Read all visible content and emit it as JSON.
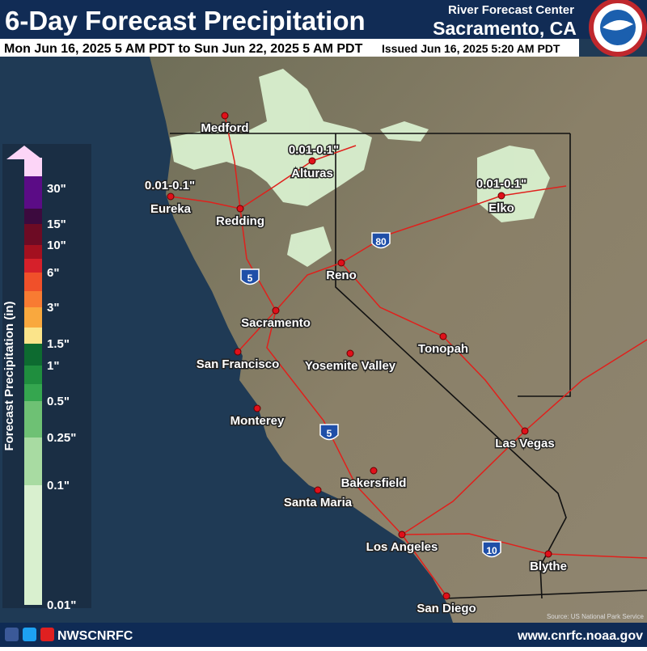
{
  "header": {
    "title": "6-Day Forecast Precipitation",
    "period": "Mon Jun 16, 2025 5 AM PDT to Sun Jun 22, 2025 5 AM PDT",
    "issued": "Issued Jun 16, 2025 5:20 AM PDT",
    "office": "River Forecast Center",
    "location": "Sacramento, CA"
  },
  "legend": {
    "title": "Forecast Precipitation (in)",
    "labels": [
      "30\"",
      "15\"",
      "10\"",
      "6\"",
      "3\"",
      "1.5\"",
      "1\"",
      "0.5\"",
      "0.25\"",
      "0.1\"",
      "0.01\""
    ]
  },
  "map": {
    "cities": [
      "Medford",
      "Eureka",
      "Redding",
      "Alturas",
      "Elko",
      "Reno",
      "Sacramento",
      "San Francisco",
      "Yosemite Valley",
      "Tonopah",
      "Monterey",
      "Las Vegas",
      "Bakersfield",
      "Santa Maria",
      "Los Angeles",
      "Blythe",
      "San Diego"
    ],
    "precip_labels": [
      "0.01-0.1\"",
      "0.01-0.1\"",
      "0.01-0.1\""
    ],
    "interstates": [
      "5",
      "80",
      "5",
      "10"
    ],
    "source": "Source: US National Park Service"
  },
  "footer": {
    "handle": "NWSCNRFC",
    "url": "www.cnrfc.noaa.gov"
  }
}
